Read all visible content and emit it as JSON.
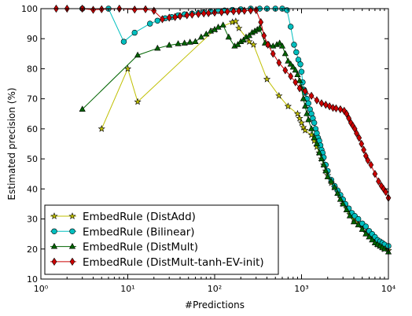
{
  "chart_data": {
    "type": "line",
    "title": "",
    "xlabel": "#Predictions",
    "ylabel": "Estimated precision (%)",
    "xscale": "log",
    "xlim": [
      1,
      10000
    ],
    "ylim": [
      10,
      100
    ],
    "x_tick_labels": [
      "10⁰",
      "10¹",
      "10²",
      "10³",
      "10⁴"
    ],
    "y_ticks": [
      10,
      20,
      30,
      40,
      50,
      60,
      70,
      80,
      90,
      100
    ],
    "grid": false,
    "legend_position": "lower-left",
    "series": [
      {
        "name": "EmbedRule (DistAdd)",
        "marker": "star",
        "color": "#bfbf00",
        "points": [
          [
            5,
            60
          ],
          [
            10,
            80
          ],
          [
            13,
            69
          ],
          [
            100,
            93
          ],
          [
            160,
            95.5
          ],
          [
            175,
            95.8
          ],
          [
            190,
            93.5
          ],
          [
            250,
            89
          ],
          [
            280,
            88
          ],
          [
            400,
            76.5
          ],
          [
            550,
            71
          ],
          [
            700,
            67.5
          ],
          [
            900,
            65
          ],
          [
            950,
            63.5
          ],
          [
            1000,
            62
          ],
          [
            1050,
            60.5
          ],
          [
            1100,
            59.5
          ],
          [
            1300,
            58
          ],
          [
            1400,
            56
          ],
          [
            1500,
            54
          ],
          [
            1600,
            52
          ],
          [
            1700,
            50
          ],
          [
            1800,
            48
          ],
          [
            1900,
            46
          ],
          [
            2000,
            44.5
          ],
          [
            2200,
            42
          ],
          [
            2400,
            40.5
          ],
          [
            2600,
            39
          ],
          [
            2800,
            37
          ],
          [
            3000,
            35
          ],
          [
            3300,
            33.5
          ],
          [
            3600,
            31.5
          ],
          [
            4000,
            30
          ],
          [
            4500,
            28.5
          ],
          [
            5000,
            27
          ],
          [
            5500,
            25.5
          ],
          [
            6000,
            24.5
          ],
          [
            6500,
            23.5
          ],
          [
            7000,
            22.5
          ],
          [
            7500,
            21.5
          ],
          [
            8000,
            21
          ],
          [
            8500,
            20.5
          ],
          [
            9000,
            20
          ],
          [
            10000,
            19.5
          ]
        ]
      },
      {
        "name": "EmbedRule (Bilinear)",
        "marker": "circle",
        "color": "#00bfbf",
        "points": [
          [
            3,
            100
          ],
          [
            6,
            100
          ],
          [
            9,
            89
          ],
          [
            12,
            92
          ],
          [
            18,
            95
          ],
          [
            22,
            96
          ],
          [
            27,
            96.8
          ],
          [
            32,
            97.2
          ],
          [
            38,
            97.8
          ],
          [
            45,
            98.1
          ],
          [
            55,
            98.4
          ],
          [
            65,
            98.6
          ],
          [
            75,
            98.8
          ],
          [
            90,
            99
          ],
          [
            110,
            99.2
          ],
          [
            130,
            99.4
          ],
          [
            160,
            99.6
          ],
          [
            200,
            99.8
          ],
          [
            260,
            100
          ],
          [
            330,
            100
          ],
          [
            400,
            100
          ],
          [
            500,
            100
          ],
          [
            600,
            100
          ],
          [
            680,
            99.5
          ],
          [
            750,
            94
          ],
          [
            820,
            88
          ],
          [
            870,
            85.5
          ],
          [
            920,
            83
          ],
          [
            970,
            81.5
          ],
          [
            1000,
            79
          ],
          [
            1030,
            75.5
          ],
          [
            1070,
            73
          ],
          [
            1100,
            72
          ],
          [
            1150,
            70
          ],
          [
            1200,
            68.5
          ],
          [
            1250,
            66.5
          ],
          [
            1300,
            65
          ],
          [
            1350,
            63.5
          ],
          [
            1400,
            62
          ],
          [
            1450,
            60
          ],
          [
            1500,
            58.5
          ],
          [
            1550,
            57
          ],
          [
            1600,
            56
          ],
          [
            1650,
            54.5
          ],
          [
            1700,
            53
          ],
          [
            1750,
            52
          ],
          [
            1800,
            50.5
          ],
          [
            1900,
            48
          ],
          [
            2000,
            46
          ],
          [
            2200,
            43
          ],
          [
            2400,
            41
          ],
          [
            2600,
            39.5
          ],
          [
            2800,
            38
          ],
          [
            3000,
            36.5
          ],
          [
            3200,
            35
          ],
          [
            3500,
            33.5
          ],
          [
            3800,
            32
          ],
          [
            4100,
            31
          ],
          [
            4500,
            30
          ],
          [
            5000,
            28.5
          ],
          [
            5500,
            27.5
          ],
          [
            6000,
            26
          ],
          [
            6500,
            25
          ],
          [
            7000,
            24
          ],
          [
            7500,
            23
          ],
          [
            8000,
            22.5
          ],
          [
            8500,
            22
          ],
          [
            9000,
            21.5
          ],
          [
            10000,
            21
          ]
        ]
      },
      {
        "name": "EmbedRule (DistMult)",
        "marker": "triangle",
        "color": "#006400",
        "points": [
          [
            3,
            66.5
          ],
          [
            13,
            84.5
          ],
          [
            22,
            86.8
          ],
          [
            30,
            87.8
          ],
          [
            38,
            88.3
          ],
          [
            45,
            88.5
          ],
          [
            52,
            88.8
          ],
          [
            60,
            89
          ],
          [
            70,
            90.5
          ],
          [
            80,
            91.5
          ],
          [
            90,
            92.5
          ],
          [
            100,
            93
          ],
          [
            110,
            93.8
          ],
          [
            125,
            94.5
          ],
          [
            145,
            90.5
          ],
          [
            170,
            87.5
          ],
          [
            185,
            88
          ],
          [
            200,
            89
          ],
          [
            215,
            89.5
          ],
          [
            230,
            90.5
          ],
          [
            250,
            91
          ],
          [
            270,
            92
          ],
          [
            290,
            92.5
          ],
          [
            310,
            93
          ],
          [
            330,
            93.5
          ],
          [
            380,
            88.5
          ],
          [
            420,
            88
          ],
          [
            470,
            87.5
          ],
          [
            520,
            88
          ],
          [
            560,
            88.5
          ],
          [
            600,
            87.5
          ],
          [
            650,
            85
          ],
          [
            700,
            82.5
          ],
          [
            750,
            81.5
          ],
          [
            800,
            80.5
          ],
          [
            850,
            79.5
          ],
          [
            900,
            78
          ],
          [
            950,
            76
          ],
          [
            1000,
            73.5
          ],
          [
            1050,
            70
          ],
          [
            1100,
            67.5
          ],
          [
            1150,
            65
          ],
          [
            1200,
            63
          ],
          [
            1300,
            60
          ],
          [
            1400,
            57
          ],
          [
            1500,
            55
          ],
          [
            1600,
            52
          ],
          [
            1700,
            50
          ],
          [
            1800,
            48
          ],
          [
            1900,
            46
          ],
          [
            2000,
            44
          ],
          [
            2200,
            42.5
          ],
          [
            2400,
            40.5
          ],
          [
            2600,
            38.5
          ],
          [
            2800,
            36.5
          ],
          [
            3000,
            35
          ],
          [
            3300,
            33
          ],
          [
            3600,
            31
          ],
          [
            4000,
            29
          ],
          [
            4500,
            28
          ],
          [
            5000,
            26.5
          ],
          [
            5500,
            25
          ],
          [
            6000,
            24
          ],
          [
            6500,
            23
          ],
          [
            7000,
            22
          ],
          [
            7500,
            21.5
          ],
          [
            8000,
            21
          ],
          [
            8500,
            20.5
          ],
          [
            9000,
            20
          ],
          [
            10000,
            19
          ]
        ]
      },
      {
        "name": "EmbedRule (DistMult-tanh-EV-init)",
        "marker": "diamond",
        "color": "#cc0000",
        "points": [
          [
            1.5,
            100
          ],
          [
            2,
            100
          ],
          [
            3,
            100
          ],
          [
            4,
            99.6
          ],
          [
            5,
            99.8
          ],
          [
            8,
            100
          ],
          [
            12,
            99.7
          ],
          [
            16,
            99.8
          ],
          [
            20,
            99.3
          ],
          [
            25,
            96.5
          ],
          [
            30,
            97
          ],
          [
            35,
            97.2
          ],
          [
            40,
            97.5
          ],
          [
            48,
            97.8
          ],
          [
            55,
            98
          ],
          [
            65,
            98.2
          ],
          [
            75,
            98.4
          ],
          [
            85,
            98.5
          ],
          [
            100,
            98.7
          ],
          [
            120,
            98.8
          ],
          [
            140,
            99
          ],
          [
            165,
            99.1
          ],
          [
            190,
            99.2
          ],
          [
            220,
            99.3
          ],
          [
            260,
            99.4
          ],
          [
            300,
            99.5
          ],
          [
            340,
            95.5
          ],
          [
            370,
            91
          ],
          [
            410,
            88
          ],
          [
            470,
            85
          ],
          [
            550,
            82
          ],
          [
            650,
            79.5
          ],
          [
            750,
            77.5
          ],
          [
            850,
            75.5
          ],
          [
            950,
            73.5
          ],
          [
            1100,
            72.5
          ],
          [
            1300,
            71
          ],
          [
            1500,
            69.5
          ],
          [
            1700,
            68.5
          ],
          [
            1900,
            68
          ],
          [
            2100,
            67.5
          ],
          [
            2300,
            67
          ],
          [
            2500,
            66.8
          ],
          [
            2800,
            66.5
          ],
          [
            3100,
            66
          ],
          [
            3300,
            65
          ],
          [
            3500,
            63.5
          ],
          [
            3700,
            62
          ],
          [
            3900,
            61
          ],
          [
            4100,
            60
          ],
          [
            4300,
            58.5
          ],
          [
            4600,
            57
          ],
          [
            4900,
            55
          ],
          [
            5200,
            53
          ],
          [
            5500,
            51
          ],
          [
            5800,
            49.5
          ],
          [
            6300,
            48
          ],
          [
            7000,
            45
          ],
          [
            7700,
            42.5
          ],
          [
            8300,
            41
          ],
          [
            8800,
            40
          ],
          [
            9300,
            39
          ],
          [
            10000,
            37
          ]
        ]
      }
    ]
  }
}
